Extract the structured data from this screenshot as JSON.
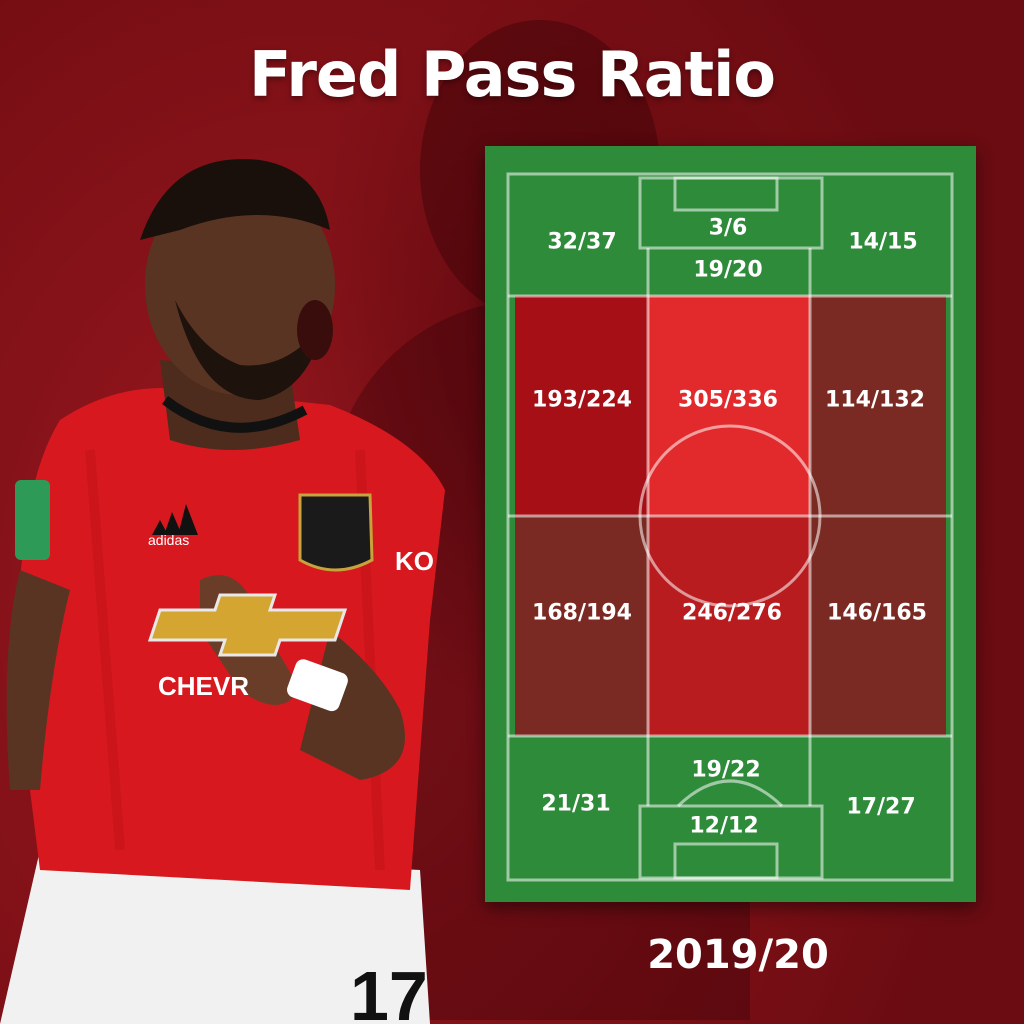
{
  "title": "Fred Pass Ratio",
  "season": "2019/20",
  "player": {
    "shirt_number": "17",
    "sponsor": "CHEVR",
    "brand": "adidas",
    "sleeve_sponsor": "KO"
  },
  "zones": {
    "top_left": "32/37",
    "top_box": "3/6",
    "top_center": "19/20",
    "top_right": "14/15",
    "upper_mid_left": "193/224",
    "upper_mid_center": "305/336",
    "upper_mid_right": "114/132",
    "lower_mid_left": "168/194",
    "lower_mid_center": "246/276",
    "lower_mid_right": "146/165",
    "bottom_left": "21/31",
    "bottom_center": "19/22",
    "bottom_box": "12/12",
    "bottom_right": "17/27"
  },
  "colors": {
    "pitch_green": "#2e8b3a",
    "zone_dark_red": "#a60f16",
    "zone_bright_red": "#e22a2c",
    "zone_brown": "#7a2a22",
    "zone_mid_red": "#b81c1f",
    "background": "#7d1016"
  }
}
